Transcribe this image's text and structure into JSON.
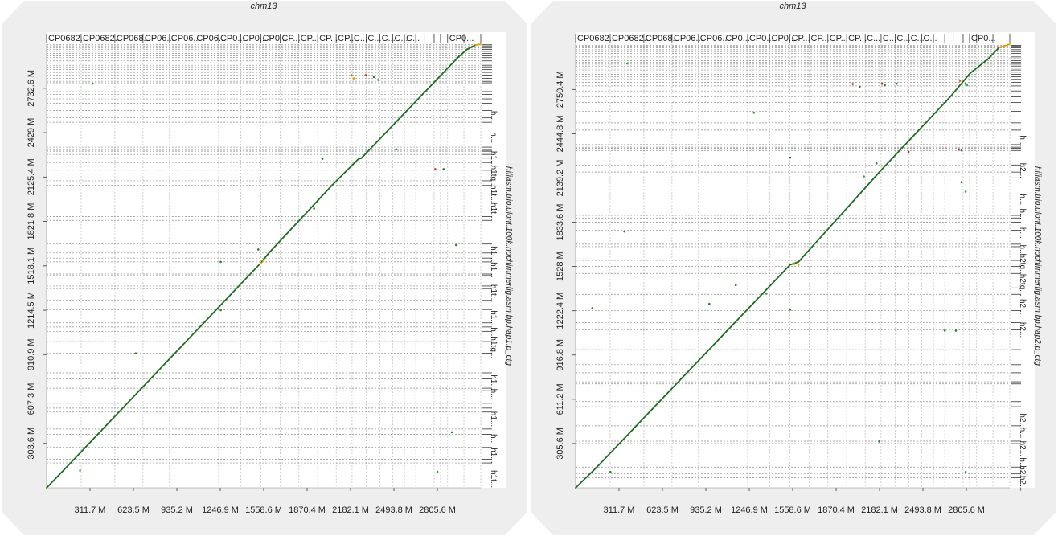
{
  "chart_data": [
    {
      "type": "scatter",
      "title": "chm13",
      "ylabel": "hifiasm.trio.ulont.100k.nochimmerfig.asm.bp.hap1.p_ctg",
      "xlim": [
        0,
        3117
      ],
      "ylim": [
        0,
        3034
      ],
      "x_ticks": [
        311.7,
        623.5,
        935.2,
        1246.9,
        1558.6,
        1870.4,
        2182.1,
        2493.8,
        2805.6
      ],
      "x_tick_labels": [
        "311.7 M",
        "623.5 M",
        "935.2 M",
        "1246.9 M",
        "1558.6 M",
        "1870.4 M",
        "2182.1 M",
        "2493.8 M",
        "2805.6 M"
      ],
      "y_ticks": [
        303.6,
        607.3,
        910.9,
        1214.5,
        1518.1,
        1821.8,
        2125.4,
        2429,
        2732.6
      ],
      "y_tick_labels": [
        "303.6 M",
        "607.3 M",
        "910.9 M",
        "1214.5 M",
        "1518.1 M",
        "1821.8 M",
        "2125.4 M",
        "2429 M",
        "2732.6 M"
      ],
      "top_contig_boundaries": [
        248,
        490,
        692,
        882,
        1064,
        1235,
        1394,
        1539,
        1677,
        1811,
        1946,
        2079,
        2193,
        2294,
        2393,
        2485,
        2569,
        2650,
        2711,
        2782,
        2828,
        2879,
        2996,
        3117
      ],
      "top_contig_labels": [
        "CP0682...",
        "CP0682...",
        "CP068...",
        "CP06...",
        "CP06...",
        "CP06...",
        "CP0...",
        "CP0...",
        "CP0...",
        "CP...",
        "CP...",
        "CP...",
        "CP...",
        "C...",
        "C...",
        "C...",
        "C...",
        "C...",
        "",
        "",
        "",
        "",
        "CP0...",
        ""
      ],
      "right_contig_labels": [
        {
          "y": 2540,
          "text": "h..."
        },
        {
          "y": 2395,
          "text": "h..."
        },
        {
          "y": 2250,
          "text": "h1..."
        },
        {
          "y": 2130,
          "text": "h1tg..."
        },
        {
          "y": 2010,
          "text": "h1t..."
        },
        {
          "y": 1890,
          "text": "h1t..."
        },
        {
          "y": 1600,
          "text": "h1..."
        },
        {
          "y": 1490,
          "text": "h1..."
        },
        {
          "y": 1330,
          "text": "h1t..."
        },
        {
          "y": 1160,
          "text": "h1..."
        },
        {
          "y": 1060,
          "text": "h..."
        },
        {
          "y": 960,
          "text": "h1tg..."
        },
        {
          "y": 720,
          "text": "h1..."
        },
        {
          "y": 640,
          "text": "h..."
        },
        {
          "y": 470,
          "text": "h1..."
        },
        {
          "y": 330,
          "text": "h..."
        },
        {
          "y": 220,
          "text": "h1..."
        },
        {
          "y": 60,
          "text": "h1t..."
        }
      ],
      "y_boundaries": [
        3030,
        3022,
        3015,
        3008,
        2998,
        2985,
        2970,
        2955,
        2942,
        2933,
        2920,
        2905,
        2890,
        2879,
        2860,
        2841,
        2822,
        2800,
        2780,
        2770,
        2710,
        2690,
        2660,
        2630,
        2580,
        2530,
        2500,
        2454,
        2330,
        2309,
        2302,
        2280,
        2255,
        2225,
        2172,
        2100,
        2068,
        1855,
        1829,
        1667,
        1606,
        1571,
        1545,
        1530,
        1462,
        1452,
        1380,
        1362,
        1282,
        1219,
        1128,
        1100,
        1070,
        1000,
        921,
        786,
        745,
        681,
        664,
        578,
        545,
        518,
        402,
        365,
        299,
        276,
        195,
        170
      ],
      "diagonal_segments": [
        [
          0,
          0,
          130,
          128
        ],
        [
          130,
          128,
          1540,
          1540
        ],
        [
          1540,
          1540,
          1590,
          1600
        ],
        [
          1590,
          1600,
          2050,
          2070
        ],
        [
          2050,
          2070,
          2240,
          2250
        ],
        [
          2240,
          2250,
          2260,
          2255
        ],
        [
          2260,
          2255,
          2960,
          2950
        ],
        [
          2960,
          2950,
          3020,
          3000
        ],
        [
          3020,
          3000,
          3080,
          3028
        ],
        [
          3080,
          3028,
          3117,
          3034
        ]
      ],
      "off_diagonal_points": [
        {
          "x": 240,
          "y": 118,
          "c": "#33aa44"
        },
        {
          "x": 1540,
          "y": 1535,
          "c": "#f2b400"
        },
        {
          "x": 1556,
          "y": 1550,
          "c": "#f2b400"
        },
        {
          "x": 2190,
          "y": 2822,
          "c": "#e07020"
        },
        {
          "x": 2290,
          "y": 2822,
          "c": "#c03030"
        },
        {
          "x": 2350,
          "y": 2810,
          "c": "#2a7a2a"
        },
        {
          "x": 2860,
          "y": 2845,
          "c": "#2a7a2a"
        },
        {
          "x": 2205,
          "y": 2800,
          "c": "#e0a000"
        },
        {
          "x": 2510,
          "y": 2315,
          "c": "#2a7a2a"
        },
        {
          "x": 2790,
          "y": 2180,
          "c": "#c03030"
        },
        {
          "x": 2850,
          "y": 2180,
          "c": "#2a7a2a"
        },
        {
          "x": 1980,
          "y": 2250,
          "c": "#2a7a2a"
        },
        {
          "x": 1920,
          "y": 1910,
          "c": "#2a7a2a"
        },
        {
          "x": 1520,
          "y": 1630,
          "c": "#2a7a2a"
        },
        {
          "x": 1250,
          "y": 1545,
          "c": "#2a7a2a"
        },
        {
          "x": 2940,
          "y": 1660,
          "c": "#2a7a2a"
        },
        {
          "x": 1250,
          "y": 1215,
          "c": "#2a7a2a"
        },
        {
          "x": 640,
          "y": 920,
          "c": "#2a7a2a"
        },
        {
          "x": 2910,
          "y": 380,
          "c": "#2a7a2a"
        },
        {
          "x": 2805,
          "y": 110,
          "c": "#33aa44"
        },
        {
          "x": 330,
          "y": 2765,
          "c": "#2a7a2a"
        },
        {
          "x": 2380,
          "y": 2790,
          "c": "#33aa44"
        }
      ]
    },
    {
      "type": "scatter",
      "title": "chm13",
      "ylabel": "hifiasm.trio.ulont.100k.nochimmerfig.asm.bp.hap2.p_ctg",
      "xlim": [
        0,
        3117
      ],
      "ylim": [
        0,
        3063
      ],
      "x_ticks": [
        311.7,
        623.5,
        935.2,
        1246.9,
        1558.6,
        1870.4,
        2182.1,
        2493.8,
        2805.6
      ],
      "x_tick_labels": [
        "311.7 M",
        "623.5 M",
        "935.2 M",
        "1246.9 M",
        "1558.6 M",
        "1870.4 M",
        "2182.1 M",
        "2493.8 M",
        "2805.6 M"
      ],
      "y_ticks": [
        305.6,
        611.2,
        916.8,
        1222.4,
        1528,
        1833.6,
        2139.2,
        2444.8,
        2750.4
      ],
      "y_tick_labels": [
        "305.6 M",
        "611.2 M",
        "916.8 M",
        "1222.4 M",
        "1528 M",
        "1833.6 M",
        "2139.2 M",
        "2444.8 M",
        "2750.4 M"
      ],
      "top_contig_boundaries": [
        248,
        490,
        692,
        882,
        1064,
        1235,
        1394,
        1539,
        1677,
        1811,
        1946,
        2079,
        2193,
        2294,
        2393,
        2485,
        2569,
        2650,
        2711,
        2782,
        2828,
        2879,
        2996,
        3117
      ],
      "top_contig_labels": [
        "CP0682...",
        "CP0682...",
        "CP068...",
        "CP06...",
        "CP06...",
        "CP0...",
        "CP0...",
        "CP0...",
        "CP...",
        "CP...",
        "CP...",
        "CP...",
        "C...",
        "C...",
        "C...",
        "C...",
        "C...",
        "",
        "",
        "",
        "",
        "CP0...",
        "",
        ""
      ],
      "right_contig_labels": [
        {
          "y": 2395,
          "text": "h..."
        },
        {
          "y": 2190,
          "text": "h2..."
        },
        {
          "y": 1990,
          "text": "h..."
        },
        {
          "y": 1890,
          "text": "h..."
        },
        {
          "y": 1760,
          "text": "h..."
        },
        {
          "y": 1640,
          "text": "h..."
        },
        {
          "y": 1540,
          "text": "h2tg..."
        },
        {
          "y": 1400,
          "text": "h2tg..."
        },
        {
          "y": 1250,
          "text": "h2..."
        },
        {
          "y": 1090,
          "text": "h2..."
        },
        {
          "y": 460,
          "text": "h2..."
        },
        {
          "y": 380,
          "text": "h..."
        },
        {
          "y": 270,
          "text": "h2..."
        },
        {
          "y": 170,
          "text": "h..."
        },
        {
          "y": 100,
          "text": "h2..."
        },
        {
          "y": 30,
          "text": "h2..."
        }
      ],
      "y_boundaries": [
        3055,
        3048,
        3038,
        3025,
        3012,
        3000,
        2988,
        2975,
        2962,
        2950,
        2937,
        2925,
        2912,
        2898,
        2885,
        2870,
        2855,
        2838,
        2820,
        2800,
        2775,
        2760,
        2740,
        2700,
        2660,
        2600,
        2520,
        2470,
        2370,
        2352,
        2345,
        2329,
        2229,
        2180,
        2140,
        1881,
        1863,
        1834,
        1778,
        1682,
        1665,
        1570,
        1528,
        1480,
        1380,
        1336,
        1224,
        1140,
        1090,
        954,
        850,
        794,
        732,
        717,
        595,
        560,
        428,
        322,
        305,
        143,
        96,
        70
      ],
      "diagonal_segments": [
        [
          0,
          0,
          150,
          140
        ],
        [
          150,
          140,
          1540,
          1540
        ],
        [
          1540,
          1540,
          1600,
          1560
        ],
        [
          1600,
          1560,
          2200,
          2200
        ],
        [
          2200,
          2200,
          2690,
          2700
        ],
        [
          2690,
          2700,
          2830,
          2860
        ],
        [
          2830,
          2860,
          2960,
          2960
        ],
        [
          2960,
          2960,
          3040,
          3040
        ],
        [
          3040,
          3040,
          3117,
          3063
        ]
      ],
      "off_diagonal_points": [
        {
          "x": 1570,
          "y": 1545,
          "c": "#f2b400"
        },
        {
          "x": 1600,
          "y": 1540,
          "c": "#f2b400"
        },
        {
          "x": 1990,
          "y": 2788,
          "c": "#c03030"
        },
        {
          "x": 2040,
          "y": 2770,
          "c": "#2a7a2a"
        },
        {
          "x": 2200,
          "y": 2790,
          "c": "#c03030"
        },
        {
          "x": 2220,
          "y": 2780,
          "c": "#2a7a2a"
        },
        {
          "x": 2305,
          "y": 2790,
          "c": "#2a7a2a"
        },
        {
          "x": 2760,
          "y": 2810,
          "c": "#e07020"
        },
        {
          "x": 2800,
          "y": 2790,
          "c": "#2a7a2a"
        },
        {
          "x": 2810,
          "y": 2780,
          "c": "#33aa44"
        },
        {
          "x": 2390,
          "y": 2320,
          "c": "#c03030"
        },
        {
          "x": 2750,
          "y": 2335,
          "c": "#c03030"
        },
        {
          "x": 2770,
          "y": 2330,
          "c": "#2a7a2a"
        },
        {
          "x": 2160,
          "y": 2240,
          "c": "#2a7a2a"
        },
        {
          "x": 2770,
          "y": 2110,
          "c": "#2a7a2a"
        },
        {
          "x": 2800,
          "y": 2045,
          "c": "#33aa44"
        },
        {
          "x": 1280,
          "y": 2590,
          "c": "#2a7a2a"
        },
        {
          "x": 2070,
          "y": 2150,
          "c": "#33aa44"
        },
        {
          "x": 350,
          "y": 1770,
          "c": "#2a7a2a"
        },
        {
          "x": 120,
          "y": 1240,
          "c": "#2a7a2a"
        },
        {
          "x": 960,
          "y": 1270,
          "c": "#2a7a2a"
        },
        {
          "x": 1540,
          "y": 1230,
          "c": "#2a7a2a"
        },
        {
          "x": 1370,
          "y": 1340,
          "c": "#33aa44"
        },
        {
          "x": 1150,
          "y": 1400,
          "c": "#2a7a2a"
        },
        {
          "x": 2650,
          "y": 1085,
          "c": "#2a7a2a"
        },
        {
          "x": 2730,
          "y": 1085,
          "c": "#2a7a2a"
        },
        {
          "x": 2180,
          "y": 320,
          "c": "#2a7a2a"
        },
        {
          "x": 2800,
          "y": 110,
          "c": "#33aa44"
        },
        {
          "x": 370,
          "y": 2930,
          "c": "#33aa44"
        },
        {
          "x": 250,
          "y": 110,
          "c": "#2a7a2a"
        },
        {
          "x": 1540,
          "y": 2280,
          "c": "#2a7a2a"
        }
      ]
    }
  ],
  "colors": {
    "diagonal": "#1f6b22",
    "grid": "#bbbbbb",
    "gridY": "#8c8c8c",
    "corner": "#eeeeee"
  }
}
